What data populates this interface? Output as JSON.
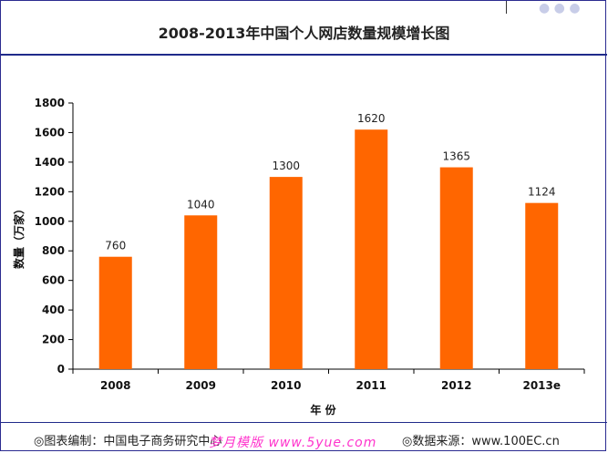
{
  "chart_data": {
    "type": "bar",
    "title": "2008-2013年中国个人网店数量规模增长图",
    "xlabel": "年 份",
    "ylabel": "数量（万家）",
    "categories": [
      "2008",
      "2009",
      "2010",
      "2011",
      "2012",
      "2013e"
    ],
    "values": [
      760,
      1040,
      1300,
      1620,
      1365,
      1124
    ],
    "ylim": [
      0,
      1800
    ],
    "yticks": [
      0,
      200,
      400,
      600,
      800,
      1000,
      1200,
      1400,
      1600,
      1800
    ],
    "bar_color": "#ff6600",
    "grid": false,
    "legend": "none"
  },
  "footer": {
    "source_left": "◎图表编制：中国电子商务研究中心",
    "source_right": "◎数据来源：www.100EC.cn",
    "watermark": "梦月模版 www.5yue.com"
  },
  "colors": {
    "frame": "#2b2b90",
    "bar": "#ff6600",
    "text": "#222222"
  }
}
